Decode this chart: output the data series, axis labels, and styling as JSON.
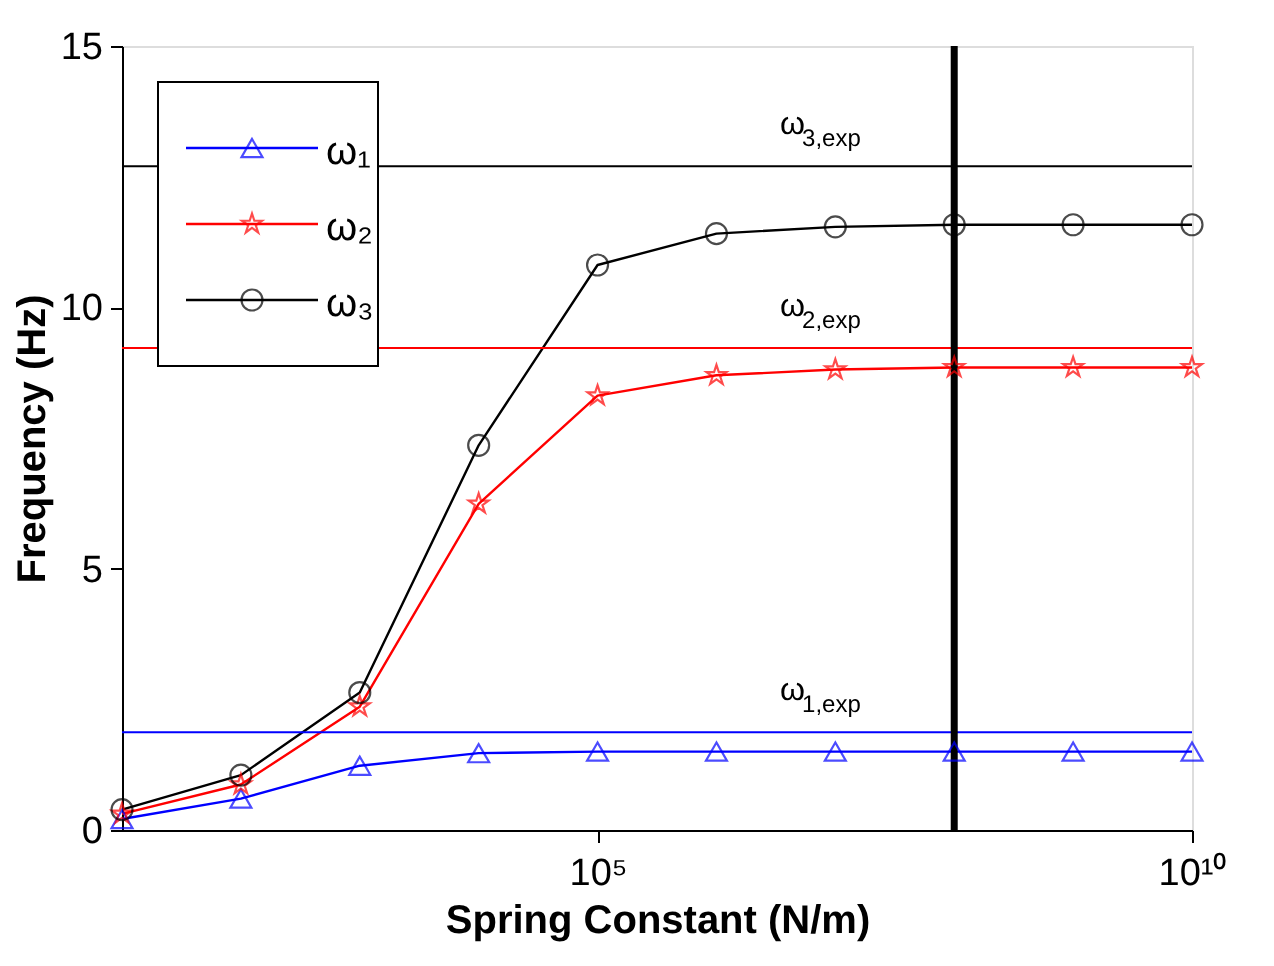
{
  "chart_data": {
    "type": "line",
    "xlabel": "Spring Constant (N/m)",
    "ylabel": "Frequency (Hz)",
    "x": [
      10,
      100,
      1000,
      10000,
      100000,
      1000000,
      10000000,
      100000000,
      1000000000,
      10000000000
    ],
    "series": [
      {
        "name": "ω₁",
        "color": "#0000ff",
        "marker": "triangle",
        "values": [
          0.21,
          0.6,
          1.23,
          1.47,
          1.5,
          1.5,
          1.5,
          1.5,
          1.5,
          1.5
        ]
      },
      {
        "name": "ω₂",
        "color": "#ff0000",
        "marker": "star",
        "values": [
          0.31,
          0.87,
          2.36,
          6.24,
          8.31,
          8.7,
          8.81,
          8.85,
          8.85,
          8.85
        ]
      },
      {
        "name": "ω₃",
        "color": "#000000",
        "marker": "circle",
        "values": [
          0.39,
          1.05,
          2.63,
          7.36,
          10.81,
          11.41,
          11.54,
          11.58,
          11.58,
          11.58
        ]
      }
    ],
    "ref_lines": [
      {
        "axis": "y",
        "value": 12.7,
        "label": "ω$_{3,exp}$",
        "color": "#000000"
      },
      {
        "axis": "y",
        "value": 9.22,
        "label": "ω$_{2,exp}$",
        "color": "#ff0000"
      },
      {
        "axis": "y",
        "value": 1.87,
        "label": "ω$_{1,exp}$",
        "color": "#0000ff"
      },
      {
        "axis": "x",
        "value": 100000000,
        "color": "#000000"
      }
    ],
    "log": "x",
    "xlim": [
      10,
      10000000000
    ],
    "xticks": [
      {
        "value": 100000,
        "label": "10⁵"
      },
      {
        "value": 10000000000,
        "label": "10¹⁰"
      }
    ],
    "ylim": [
      0,
      15
    ],
    "yticks": [
      0,
      5,
      10,
      15
    ],
    "grid": false,
    "legend": "top left",
    "line_style": "solid"
  }
}
